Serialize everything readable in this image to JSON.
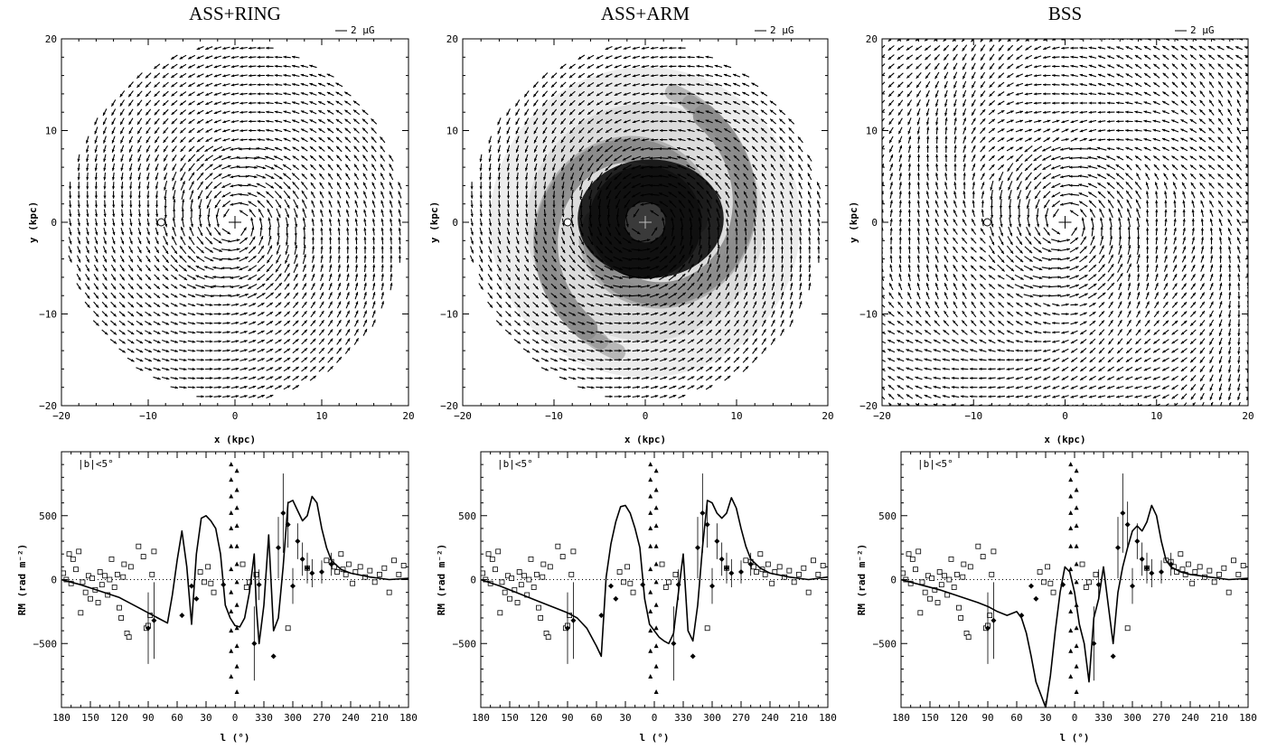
{
  "chart_data": [
    {
      "type": "vector-field",
      "title": "ASS+RING",
      "scale_label": "2 μG",
      "xlabel": "x (kpc)",
      "ylabel": "y (kpc)",
      "xlim": [
        -20,
        20
      ],
      "ylim": [
        -20,
        20
      ],
      "xticks": [
        "−20",
        "−10",
        "0",
        "10",
        "20"
      ],
      "yticks": [
        "20",
        "10",
        "0",
        "−10",
        "−20"
      ],
      "disk_radius_kpc": 20,
      "sun_position_kpc": [
        -8.5,
        0
      ],
      "field_pattern": "axisymmetric spiral with ring",
      "gray_arms": false
    },
    {
      "type": "vector-field",
      "title": "ASS+ARM",
      "scale_label": "2 μG",
      "xlabel": "x (kpc)",
      "ylabel": "y (kpc)",
      "xlim": [
        -20,
        20
      ],
      "ylim": [
        -20,
        20
      ],
      "xticks": [
        "−20",
        "−10",
        "0",
        "10",
        "20"
      ],
      "yticks": [
        "20",
        "10",
        "0",
        "−10",
        "−20"
      ],
      "disk_radius_kpc": 20,
      "sun_position_kpc": [
        -8.5,
        0
      ],
      "field_pattern": "axisymmetric spiral with arm",
      "gray_arms": true
    },
    {
      "type": "vector-field",
      "title": "BSS",
      "scale_label": "2 μG",
      "xlabel": "x (kpc)",
      "ylabel": "y (kpc)",
      "xlim": [
        -20,
        20
      ],
      "ylim": [
        -20,
        20
      ],
      "xticks": [
        "−20",
        "−10",
        "0",
        "10",
        "20"
      ],
      "yticks": [
        "20",
        "10",
        "0",
        "−10",
        "−20"
      ],
      "disk_radius_kpc": 30,
      "sun_position_kpc": [
        -8.5,
        0
      ],
      "field_pattern": "bisymmetric spiral",
      "gray_arms": false
    },
    {
      "type": "line+scatter",
      "annotation": "|b|<5°",
      "xlabel": "l (°)",
      "ylabel": "RM (rad m⁻²)",
      "xlim": [
        180,
        -180
      ],
      "ylim": [
        -1000,
        1000
      ],
      "xticks": [
        "180",
        "150",
        "120",
        "90",
        "60",
        "30",
        "0",
        "330",
        "300",
        "270",
        "240",
        "210",
        "180"
      ],
      "yticks": [
        "500",
        "0",
        "−500"
      ],
      "model_curve": {
        "l": [
          180,
          160,
          140,
          120,
          100,
          90,
          80,
          70,
          65,
          60,
          55,
          50,
          45,
          40,
          35,
          30,
          25,
          20,
          15,
          10,
          5,
          0,
          -5,
          -10,
          -15,
          -20,
          -22,
          -25,
          -30,
          -35,
          -40,
          -45,
          -50,
          -55,
          -60,
          -65,
          -70,
          -75,
          -80,
          -85,
          -90,
          -95,
          -100,
          -110,
          -120,
          -140,
          -160,
          -180
        ],
        "rm": [
          0,
          -40,
          -90,
          -140,
          -220,
          -260,
          -300,
          -340,
          -120,
          150,
          380,
          100,
          -350,
          200,
          480,
          500,
          460,
          400,
          200,
          -200,
          -300,
          -360,
          -370,
          -300,
          -100,
          200,
          -200,
          -500,
          -200,
          350,
          -400,
          -300,
          100,
          600,
          620,
          540,
          460,
          500,
          650,
          600,
          400,
          250,
          150,
          80,
          50,
          20,
          0,
          10
        ]
      },
      "extragalactic_sources": {
        "l": [
          178,
          175,
          172,
          170,
          168,
          165,
          162,
          160,
          158,
          155,
          152,
          150,
          148,
          145,
          142,
          140,
          138,
          135,
          132,
          130,
          128,
          125,
          122,
          120,
          118,
          116,
          115,
          112,
          110,
          108,
          100,
          95,
          92,
          90,
          88,
          86,
          84,
          36,
          32,
          28,
          25,
          22,
          -8,
          -12,
          -15,
          -22,
          -55,
          -75,
          -95,
          -100,
          -103,
          -106,
          -110,
          -112,
          -115,
          -118,
          -122,
          -125,
          -130,
          -135,
          -140,
          -145,
          -150,
          -155,
          -160,
          -165,
          -170,
          -175
        ],
        "rm": [
          50,
          0,
          200,
          -30,
          160,
          80,
          220,
          -260,
          -20,
          -100,
          30,
          -150,
          10,
          -80,
          -180,
          60,
          -40,
          30,
          -120,
          0,
          160,
          -60,
          40,
          -220,
          -300,
          20,
          120,
          -420,
          -450,
          100,
          260,
          180,
          -380,
          -360,
          -280,
          40,
          220,
          60,
          -20,
          100,
          -30,
          -100,
          120,
          -60,
          -20,
          40,
          -380,
          90,
          150,
          140,
          100,
          60,
          200,
          80,
          40,
          120,
          -30,
          60,
          100,
          20,
          70,
          -20,
          40,
          90,
          -100,
          150,
          40,
          110
        ]
      },
      "pulsars": {
        "l": [
          90,
          84,
          55,
          45,
          40,
          12,
          -20,
          -25,
          -40,
          -45,
          -50,
          -55,
          -60,
          -65,
          -70,
          -75,
          -80,
          -90,
          -100
        ],
        "rm": [
          -380,
          -320,
          -280,
          -50,
          -150,
          -40,
          -500,
          -40,
          -600,
          250,
          520,
          430,
          -50,
          300,
          160,
          90,
          50,
          60,
          120
        ],
        "err": [
          280,
          300,
          0,
          0,
          0,
          0,
          290,
          120,
          0,
          240,
          310,
          180,
          140,
          140,
          130,
          120,
          110,
          90,
          90
        ]
      },
      "galactic_center_triangles": {
        "l": [
          4,
          4,
          4,
          4,
          4,
          4,
          4,
          4,
          4,
          4,
          4,
          4,
          -2,
          -2,
          -2,
          -2,
          -2,
          -2,
          -2,
          -2,
          -2,
          -2,
          -2,
          -2
        ],
        "rm": [
          900,
          780,
          650,
          520,
          400,
          260,
          80,
          -100,
          -250,
          -400,
          -560,
          -760,
          850,
          700,
          560,
          420,
          260,
          120,
          -20,
          -200,
          -380,
          -520,
          -680,
          -880
        ]
      }
    },
    {
      "type": "line+scatter",
      "annotation": "|b|<5°",
      "xlabel": "l (°)",
      "ylabel": "RM (rad m⁻²)",
      "xlim": [
        180,
        -180
      ],
      "ylim": [
        -1000,
        1000
      ],
      "xticks": [
        "180",
        "150",
        "120",
        "90",
        "60",
        "30",
        "0",
        "330",
        "300",
        "270",
        "240",
        "210",
        "180"
      ],
      "yticks": [
        "500",
        "0",
        "−500"
      ],
      "model_curve": {
        "l": [
          180,
          160,
          140,
          120,
          100,
          90,
          80,
          70,
          60,
          55,
          50,
          45,
          40,
          35,
          30,
          25,
          20,
          15,
          10,
          5,
          0,
          -5,
          -10,
          -15,
          -20,
          -25,
          -30,
          -35,
          -40,
          -45,
          -50,
          -55,
          -60,
          -65,
          -70,
          -75,
          -80,
          -85,
          -90,
          -95,
          -100,
          -110,
          -120,
          -140,
          -160,
          -180
        ],
        "rm": [
          0,
          -50,
          -110,
          -170,
          -230,
          -260,
          -300,
          -380,
          -520,
          -600,
          20,
          280,
          450,
          570,
          580,
          520,
          400,
          250,
          -150,
          -350,
          -400,
          -450,
          -480,
          -500,
          -420,
          -100,
          200,
          -400,
          -480,
          -200,
          250,
          620,
          600,
          520,
          480,
          520,
          640,
          560,
          400,
          260,
          160,
          90,
          50,
          20,
          0,
          20
        ]
      },
      "extragalactic_sources": {
        "l": [
          178,
          175,
          172,
          170,
          168,
          165,
          162,
          160,
          158,
          155,
          152,
          150,
          148,
          145,
          142,
          140,
          138,
          135,
          132,
          130,
          128,
          125,
          122,
          120,
          118,
          116,
          115,
          112,
          110,
          108,
          100,
          95,
          92,
          90,
          88,
          86,
          84,
          36,
          32,
          28,
          25,
          22,
          -8,
          -12,
          -15,
          -22,
          -55,
          -75,
          -95,
          -100,
          -103,
          -106,
          -110,
          -112,
          -115,
          -118,
          -122,
          -125,
          -130,
          -135,
          -140,
          -145,
          -150,
          -155,
          -160,
          -165,
          -170,
          -175
        ],
        "rm": [
          50,
          0,
          200,
          -30,
          160,
          80,
          220,
          -260,
          -20,
          -100,
          30,
          -150,
          10,
          -80,
          -180,
          60,
          -40,
          30,
          -120,
          0,
          160,
          -60,
          40,
          -220,
          -300,
          20,
          120,
          -420,
          -450,
          100,
          260,
          180,
          -380,
          -360,
          -280,
          40,
          220,
          60,
          -20,
          100,
          -30,
          -100,
          120,
          -60,
          -20,
          40,
          -380,
          90,
          150,
          140,
          100,
          60,
          200,
          80,
          40,
          120,
          -30,
          60,
          100,
          20,
          70,
          -20,
          40,
          90,
          -100,
          150,
          40,
          110
        ]
      },
      "pulsars": {
        "l": [
          90,
          84,
          55,
          45,
          40,
          12,
          -20,
          -25,
          -40,
          -45,
          -50,
          -55,
          -60,
          -65,
          -70,
          -75,
          -80,
          -90,
          -100
        ],
        "rm": [
          -380,
          -320,
          -280,
          -50,
          -150,
          -40,
          -500,
          -40,
          -600,
          250,
          520,
          430,
          -50,
          300,
          160,
          90,
          50,
          60,
          120
        ],
        "err": [
          280,
          300,
          0,
          0,
          0,
          0,
          290,
          120,
          0,
          240,
          310,
          180,
          140,
          140,
          130,
          120,
          110,
          90,
          90
        ]
      },
      "galactic_center_triangles": {
        "l": [
          4,
          4,
          4,
          4,
          4,
          4,
          4,
          4,
          4,
          4,
          4,
          4,
          -2,
          -2,
          -2,
          -2,
          -2,
          -2,
          -2,
          -2,
          -2,
          -2,
          -2,
          -2
        ],
        "rm": [
          900,
          780,
          650,
          520,
          400,
          260,
          80,
          -100,
          -250,
          -400,
          -560,
          -760,
          850,
          700,
          560,
          420,
          260,
          120,
          -20,
          -200,
          -380,
          -520,
          -680,
          -880
        ]
      }
    },
    {
      "type": "line+scatter",
      "annotation": "|b|<5°",
      "xlabel": "l (°)",
      "ylabel": "RM (rad m⁻²)",
      "xlim": [
        180,
        -180
      ],
      "ylim": [
        -1000,
        1000
      ],
      "xticks": [
        "180",
        "150",
        "120",
        "90",
        "60",
        "30",
        "0",
        "330",
        "300",
        "270",
        "240",
        "210",
        "180"
      ],
      "yticks": [
        "500",
        "0",
        "−500"
      ],
      "model_curve": {
        "l": [
          180,
          160,
          140,
          120,
          100,
          90,
          80,
          70,
          60,
          55,
          50,
          45,
          40,
          35,
          30,
          25,
          20,
          15,
          10,
          5,
          0,
          -5,
          -10,
          -15,
          -20,
          -25,
          -30,
          -35,
          -40,
          -45,
          -50,
          -55,
          -60,
          -65,
          -70,
          -75,
          -80,
          -85,
          -90,
          -95,
          -100,
          -110,
          -120,
          -140,
          -160,
          -180
        ],
        "rm": [
          0,
          -40,
          -80,
          -130,
          -180,
          -210,
          -250,
          -280,
          -250,
          -300,
          -420,
          -600,
          -800,
          -900,
          -1000,
          -750,
          -400,
          -100,
          100,
          60,
          -100,
          -350,
          -500,
          -800,
          -300,
          -150,
          100,
          -200,
          -500,
          -100,
          100,
          250,
          380,
          420,
          380,
          450,
          580,
          500,
          300,
          150,
          100,
          60,
          40,
          20,
          0,
          10
        ]
      },
      "extragalactic_sources": {
        "l": [
          178,
          175,
          172,
          170,
          168,
          165,
          162,
          160,
          158,
          155,
          152,
          150,
          148,
          145,
          142,
          140,
          138,
          135,
          132,
          130,
          128,
          125,
          122,
          120,
          118,
          116,
          115,
          112,
          110,
          108,
          100,
          95,
          92,
          90,
          88,
          86,
          84,
          36,
          32,
          28,
          25,
          22,
          -8,
          -12,
          -15,
          -22,
          -55,
          -75,
          -95,
          -100,
          -103,
          -106,
          -110,
          -112,
          -115,
          -118,
          -122,
          -125,
          -130,
          -135,
          -140,
          -145,
          -150,
          -155,
          -160,
          -165,
          -170,
          -175
        ],
        "rm": [
          50,
          0,
          200,
          -30,
          160,
          80,
          220,
          -260,
          -20,
          -100,
          30,
          -150,
          10,
          -80,
          -180,
          60,
          -40,
          30,
          -120,
          0,
          160,
          -60,
          40,
          -220,
          -300,
          20,
          120,
          -420,
          -450,
          100,
          260,
          180,
          -380,
          -360,
          -280,
          40,
          220,
          60,
          -20,
          100,
          -30,
          -100,
          120,
          -60,
          -20,
          40,
          -380,
          90,
          150,
          140,
          100,
          60,
          200,
          80,
          40,
          120,
          -30,
          60,
          100,
          20,
          70,
          -20,
          40,
          90,
          -100,
          150,
          40,
          110
        ]
      },
      "pulsars": {
        "l": [
          90,
          84,
          55,
          45,
          40,
          12,
          -20,
          -25,
          -40,
          -45,
          -50,
          -55,
          -60,
          -65,
          -70,
          -75,
          -80,
          -90,
          -100
        ],
        "rm": [
          -380,
          -320,
          -280,
          -50,
          -150,
          -40,
          -500,
          -40,
          -600,
          250,
          520,
          430,
          -50,
          300,
          160,
          90,
          50,
          60,
          120
        ],
        "err": [
          280,
          300,
          0,
          0,
          0,
          0,
          290,
          120,
          0,
          240,
          310,
          180,
          140,
          140,
          130,
          120,
          110,
          90,
          90
        ]
      },
      "galactic_center_triangles": {
        "l": [
          4,
          4,
          4,
          4,
          4,
          4,
          4,
          4,
          4,
          4,
          4,
          4,
          -2,
          -2,
          -2,
          -2,
          -2,
          -2,
          -2,
          -2,
          -2,
          -2,
          -2,
          -2
        ],
        "rm": [
          900,
          780,
          650,
          520,
          400,
          260,
          80,
          -100,
          -250,
          -400,
          -560,
          -760,
          850,
          700,
          560,
          420,
          260,
          120,
          -20,
          -200,
          -380,
          -520,
          -680,
          -880
        ]
      }
    }
  ]
}
